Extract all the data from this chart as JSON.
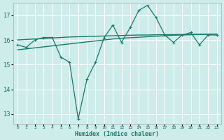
{
  "xlabel": "Humidex (Indice chaleur)",
  "ylabel": "",
  "bg_color": "#ceecea",
  "grid_color": "#ffffff",
  "line_color": "#1a7a6e",
  "xlim": [
    -0.5,
    23.5
  ],
  "ylim": [
    12.6,
    17.5
  ],
  "yticks": [
    13,
    14,
    15,
    16,
    17
  ],
  "xtick_labels": [
    "0",
    "1",
    "2",
    "3",
    "4",
    "5",
    "6",
    "7",
    "8",
    "9",
    "10",
    "11",
    "12",
    "13",
    "14",
    "15",
    "16",
    "17",
    "18",
    "19",
    "20",
    "21",
    "22",
    "23"
  ],
  "main_data": [
    15.8,
    15.7,
    16.0,
    16.1,
    16.1,
    15.3,
    15.1,
    12.8,
    14.4,
    15.1,
    16.1,
    16.6,
    15.9,
    16.5,
    17.2,
    17.4,
    16.9,
    16.2,
    15.9,
    16.2,
    16.3,
    15.8,
    16.2,
    16.2
  ],
  "smooth1_data": [
    16.0,
    16.02,
    16.04,
    16.06,
    16.08,
    16.1,
    16.12,
    16.13,
    16.14,
    16.15,
    16.16,
    16.17,
    16.18,
    16.19,
    16.2,
    16.2,
    16.21,
    16.21,
    16.22,
    16.22,
    16.23,
    16.23,
    16.23,
    16.24
  ],
  "smooth2_data": [
    15.6,
    15.64,
    15.68,
    15.72,
    15.76,
    15.8,
    15.84,
    15.88,
    15.92,
    15.96,
    16.0,
    16.04,
    16.07,
    16.09,
    16.11,
    16.13,
    16.15,
    16.17,
    16.19,
    16.2,
    16.21,
    16.22,
    16.23,
    16.24
  ]
}
